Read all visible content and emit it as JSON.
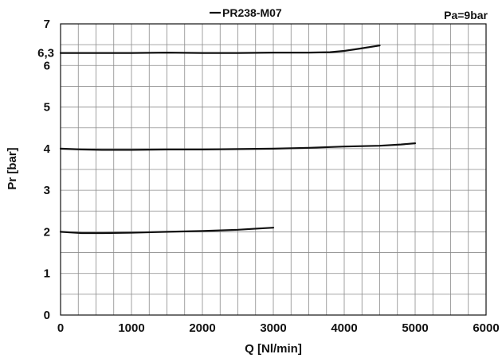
{
  "chart_data": {
    "type": "line",
    "title": "",
    "legend": {
      "entries": [
        "PR238-M07"
      ],
      "placement": "top-center"
    },
    "annotation": "Pa=9bar",
    "xlabel": "Q [Nl/min]",
    "ylabel": "Pr [bar]",
    "xlim": [
      0,
      6000
    ],
    "ylim": [
      0,
      7
    ],
    "x_ticks": [
      0,
      1000,
      2000,
      3000,
      4000,
      5000,
      6000
    ],
    "y_ticks": [
      0,
      1,
      2,
      3,
      4,
      5,
      6,
      7
    ],
    "extra_y_ticks": [
      {
        "value": 6.3,
        "label": "6,3"
      }
    ],
    "x_minor_step": 250,
    "y_minor_step": 0.5,
    "grid": true,
    "series": [
      {
        "x": [
          0,
          300,
          600,
          1000,
          1500,
          2000,
          2500,
          2800,
          3000
        ],
        "y": [
          2.0,
          1.97,
          1.97,
          1.98,
          2.0,
          2.02,
          2.05,
          2.08,
          2.1
        ]
      },
      {
        "x": [
          0,
          300,
          600,
          1000,
          1500,
          2000,
          2500,
          3000,
          3500,
          4000,
          4500,
          4800,
          5000
        ],
        "y": [
          4.0,
          3.98,
          3.97,
          3.97,
          3.98,
          3.98,
          3.99,
          4.0,
          4.02,
          4.05,
          4.07,
          4.1,
          4.13
        ]
      },
      {
        "x": [
          0,
          500,
          1000,
          1500,
          2000,
          2500,
          3000,
          3500,
          3800,
          4000,
          4200,
          4500
        ],
        "y": [
          6.3,
          6.3,
          6.3,
          6.31,
          6.3,
          6.3,
          6.31,
          6.31,
          6.32,
          6.35,
          6.4,
          6.48
        ]
      }
    ]
  }
}
